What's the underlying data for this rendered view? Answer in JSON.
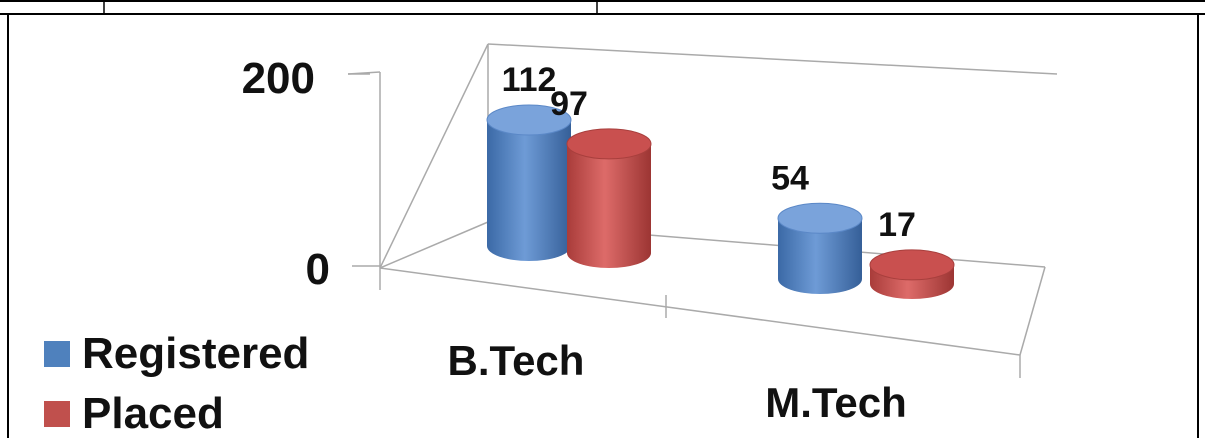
{
  "chart_data": {
    "type": "bar",
    "style": "3d-cylinder",
    "title": "",
    "xlabel": "",
    "ylabel": "",
    "categories": [
      "B.Tech",
      "M.Tech"
    ],
    "ylim": [
      0,
      200
    ],
    "yticks": [
      "0",
      "200"
    ],
    "grid": false,
    "legend": "bottom-left",
    "series": [
      {
        "name": "Registered",
        "color": "#4F81BD",
        "values": [
          112,
          54
        ],
        "labels": [
          "112",
          "54"
        ]
      },
      {
        "name": "Placed",
        "color": "#C0504D",
        "values": [
          97,
          17
        ],
        "labels": [
          "97",
          "17"
        ]
      }
    ]
  }
}
